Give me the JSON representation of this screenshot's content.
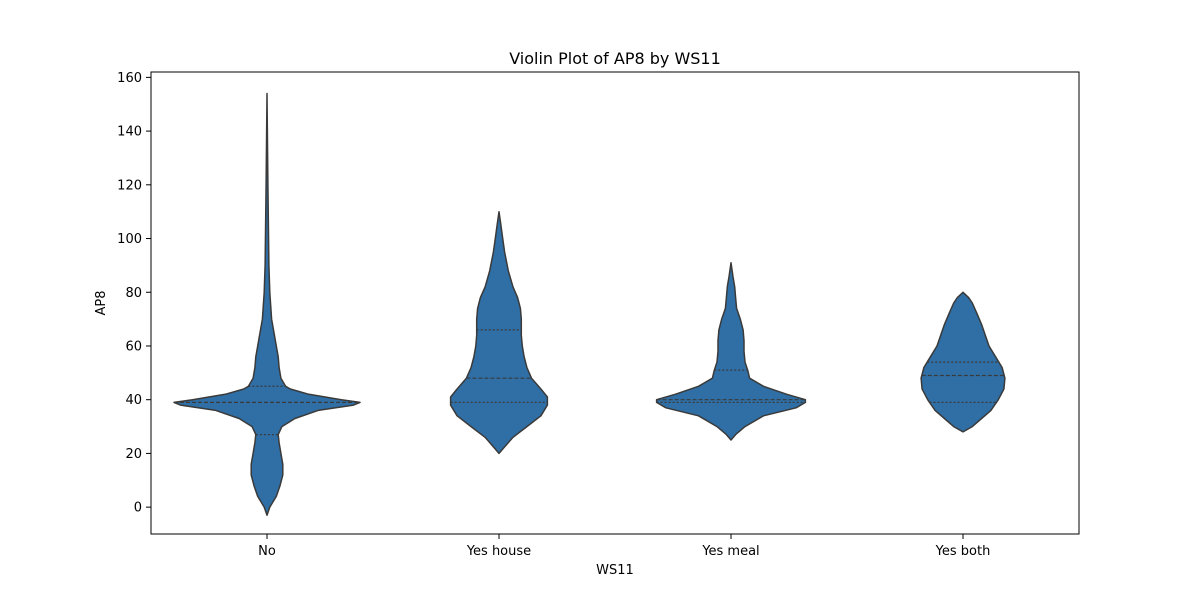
{
  "chart_data": {
    "type": "violin",
    "title": "Violin Plot of AP8 by WS11",
    "xlabel": "WS11",
    "ylabel": "AP8",
    "ylim": [
      -10,
      162
    ],
    "yticks": [
      0,
      20,
      40,
      60,
      80,
      100,
      120,
      140,
      160
    ],
    "categories": [
      "No",
      "Yes house",
      "Yes meal",
      "Yes both"
    ],
    "color": "#2f6fa5",
    "edge_color": "#3a3a3a",
    "grid": false,
    "violins": [
      {
        "category": "No",
        "min": -3,
        "max": 154,
        "quartiles": [
          27,
          39,
          45
        ],
        "profile": [
          [
            -3,
            0.0
          ],
          [
            0,
            0.03
          ],
          [
            4,
            0.1
          ],
          [
            8,
            0.14
          ],
          [
            12,
            0.17
          ],
          [
            16,
            0.17
          ],
          [
            20,
            0.15
          ],
          [
            24,
            0.13
          ],
          [
            27,
            0.12
          ],
          [
            30,
            0.16
          ],
          [
            33,
            0.3
          ],
          [
            36,
            0.55
          ],
          [
            38,
            0.93
          ],
          [
            39,
            1.0
          ],
          [
            40,
            0.8
          ],
          [
            42,
            0.45
          ],
          [
            44,
            0.25
          ],
          [
            45,
            0.2
          ],
          [
            48,
            0.15
          ],
          [
            52,
            0.13
          ],
          [
            56,
            0.12
          ],
          [
            60,
            0.1
          ],
          [
            66,
            0.07
          ],
          [
            70,
            0.05
          ],
          [
            80,
            0.03
          ],
          [
            90,
            0.02
          ],
          [
            120,
            0.01
          ],
          [
            154,
            0.0
          ]
        ]
      },
      {
        "category": "Yes house",
        "min": 20,
        "max": 110,
        "quartiles": [
          39,
          48,
          66
        ],
        "profile": [
          [
            20,
            0.0
          ],
          [
            22,
            0.05
          ],
          [
            26,
            0.15
          ],
          [
            30,
            0.3
          ],
          [
            34,
            0.45
          ],
          [
            38,
            0.52
          ],
          [
            41,
            0.52
          ],
          [
            44,
            0.45
          ],
          [
            48,
            0.35
          ],
          [
            52,
            0.3
          ],
          [
            56,
            0.27
          ],
          [
            60,
            0.25
          ],
          [
            64,
            0.24
          ],
          [
            66,
            0.24
          ],
          [
            70,
            0.24
          ],
          [
            74,
            0.23
          ],
          [
            78,
            0.2
          ],
          [
            82,
            0.15
          ],
          [
            88,
            0.1
          ],
          [
            95,
            0.06
          ],
          [
            100,
            0.04
          ],
          [
            105,
            0.02
          ],
          [
            110,
            0.0
          ]
        ]
      },
      {
        "category": "Yes meal",
        "min": 25,
        "max": 91,
        "quartiles": [
          39,
          40,
          51
        ],
        "profile": [
          [
            25,
            0.0
          ],
          [
            27,
            0.05
          ],
          [
            30,
            0.15
          ],
          [
            34,
            0.35
          ],
          [
            37,
            0.7
          ],
          [
            39,
            0.8
          ],
          [
            40,
            0.8
          ],
          [
            42,
            0.6
          ],
          [
            45,
            0.35
          ],
          [
            48,
            0.2
          ],
          [
            51,
            0.18
          ],
          [
            54,
            0.15
          ],
          [
            58,
            0.14
          ],
          [
            62,
            0.14
          ],
          [
            66,
            0.13
          ],
          [
            70,
            0.1
          ],
          [
            74,
            0.06
          ],
          [
            78,
            0.05
          ],
          [
            82,
            0.04
          ],
          [
            86,
            0.02
          ],
          [
            91,
            0.0
          ]
        ]
      },
      {
        "category": "Yes both",
        "min": 28,
        "max": 80,
        "quartiles": [
          39,
          49,
          54
        ],
        "profile": [
          [
            28,
            0.0
          ],
          [
            30,
            0.1
          ],
          [
            33,
            0.2
          ],
          [
            36,
            0.3
          ],
          [
            40,
            0.38
          ],
          [
            44,
            0.44
          ],
          [
            48,
            0.45
          ],
          [
            52,
            0.42
          ],
          [
            56,
            0.35
          ],
          [
            60,
            0.28
          ],
          [
            64,
            0.24
          ],
          [
            68,
            0.2
          ],
          [
            72,
            0.15
          ],
          [
            76,
            0.1
          ],
          [
            78,
            0.06
          ],
          [
            80,
            0.0
          ]
        ]
      }
    ]
  }
}
